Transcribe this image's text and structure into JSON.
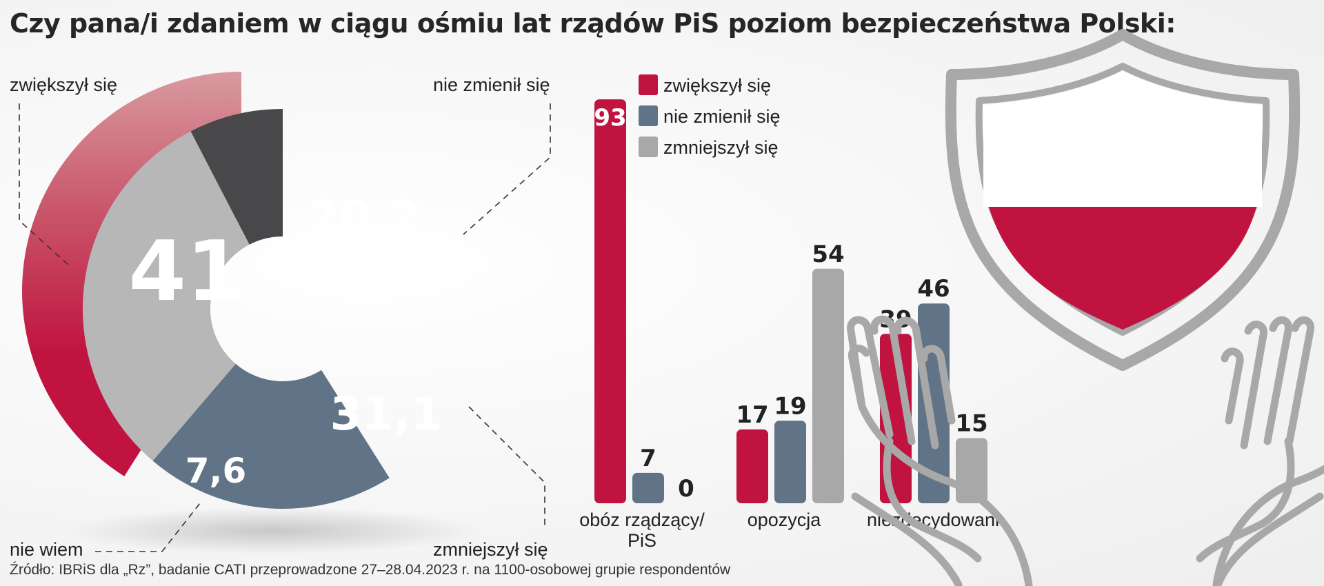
{
  "title": "Czy pana/i zdaniem w ciągu ośmiu lat rządów PiS poziom bezpieczeństwa Polski:",
  "source": "Źródło: IBRiS dla „Rz”, badanie CATI przeprowadzone 27–28.04.2023 r. na 1100-osobowej grupie respondentów",
  "colors": {
    "red": "#c0133f",
    "blue": "#617487",
    "gray": "#a8a8a8",
    "dark": "#48484a",
    "lightgray": "#b7b7b7"
  },
  "chart_data": [
    {
      "type": "pie",
      "slices": [
        {
          "label": "zwiększył się",
          "value": 41,
          "display": "41",
          "color": "#c0133f"
        },
        {
          "label": "nie zmienił się",
          "value": 20.2,
          "display": "20,2",
          "color": "#617487"
        },
        {
          "label": "zmniejszył się",
          "value": 31.1,
          "display": "31,1",
          "color": "#b7b7b7"
        },
        {
          "label": "nie wiem",
          "value": 7.6,
          "display": "7,6",
          "color": "#48484a"
        }
      ]
    },
    {
      "type": "bar",
      "categories": [
        "obóz rządzący/\nPiS",
        "opozycja",
        "niezdecydowani"
      ],
      "category_lines": [
        [
          "obóz rządzący/",
          "PiS"
        ],
        [
          "opozycja"
        ],
        [
          "niezdecydowani"
        ]
      ],
      "series": [
        {
          "name": "zwiększył się",
          "values": [
            93,
            17,
            39
          ],
          "color": "#c0133f"
        },
        {
          "name": "nie zmienił się",
          "values": [
            7,
            19,
            46
          ],
          "color": "#617487"
        },
        {
          "name": "zmniejszył się",
          "values": [
            0,
            54,
            15
          ],
          "color": "#a8a8a8"
        }
      ],
      "legend_position": "top-left"
    }
  ]
}
